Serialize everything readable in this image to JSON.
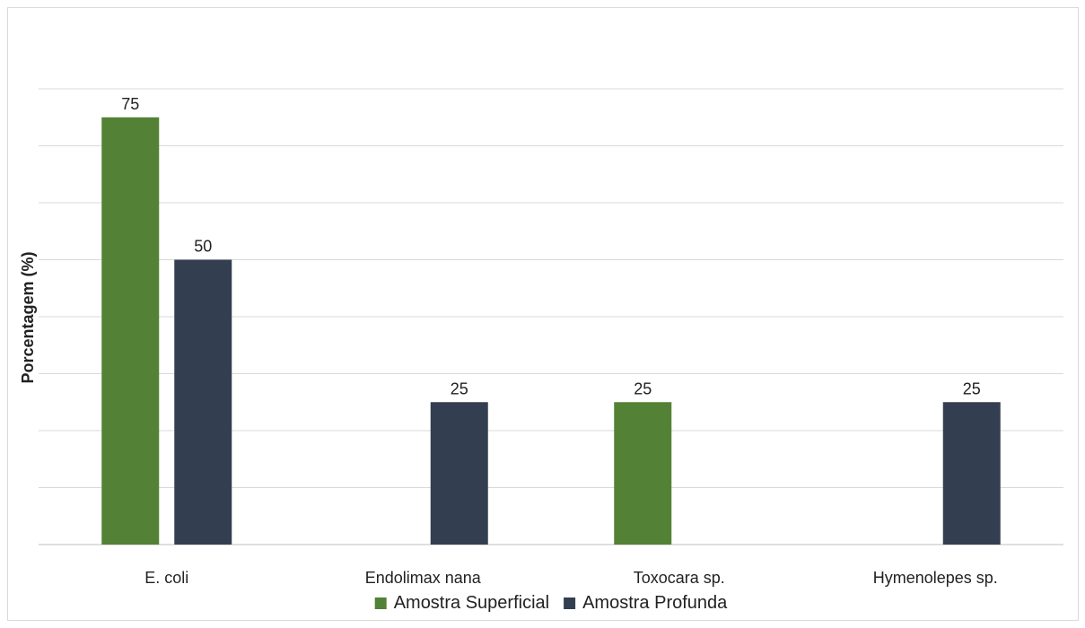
{
  "chart_data": {
    "type": "bar",
    "title": "",
    "xlabel": "",
    "ylabel": "Porcentagem (%)",
    "ylim": [
      0,
      80
    ],
    "grid": true,
    "legend_position": "bottom",
    "categories": [
      "E. coli",
      "Endolimax nana",
      "Toxocara sp.",
      "Hymenolepes sp."
    ],
    "series": [
      {
        "name": "Amostra Superficial",
        "color": "#538135",
        "values": [
          75,
          null,
          25,
          null
        ]
      },
      {
        "name": "Amostra Profunda",
        "color": "#333f50",
        "values": [
          50,
          25,
          null,
          25
        ]
      }
    ]
  }
}
